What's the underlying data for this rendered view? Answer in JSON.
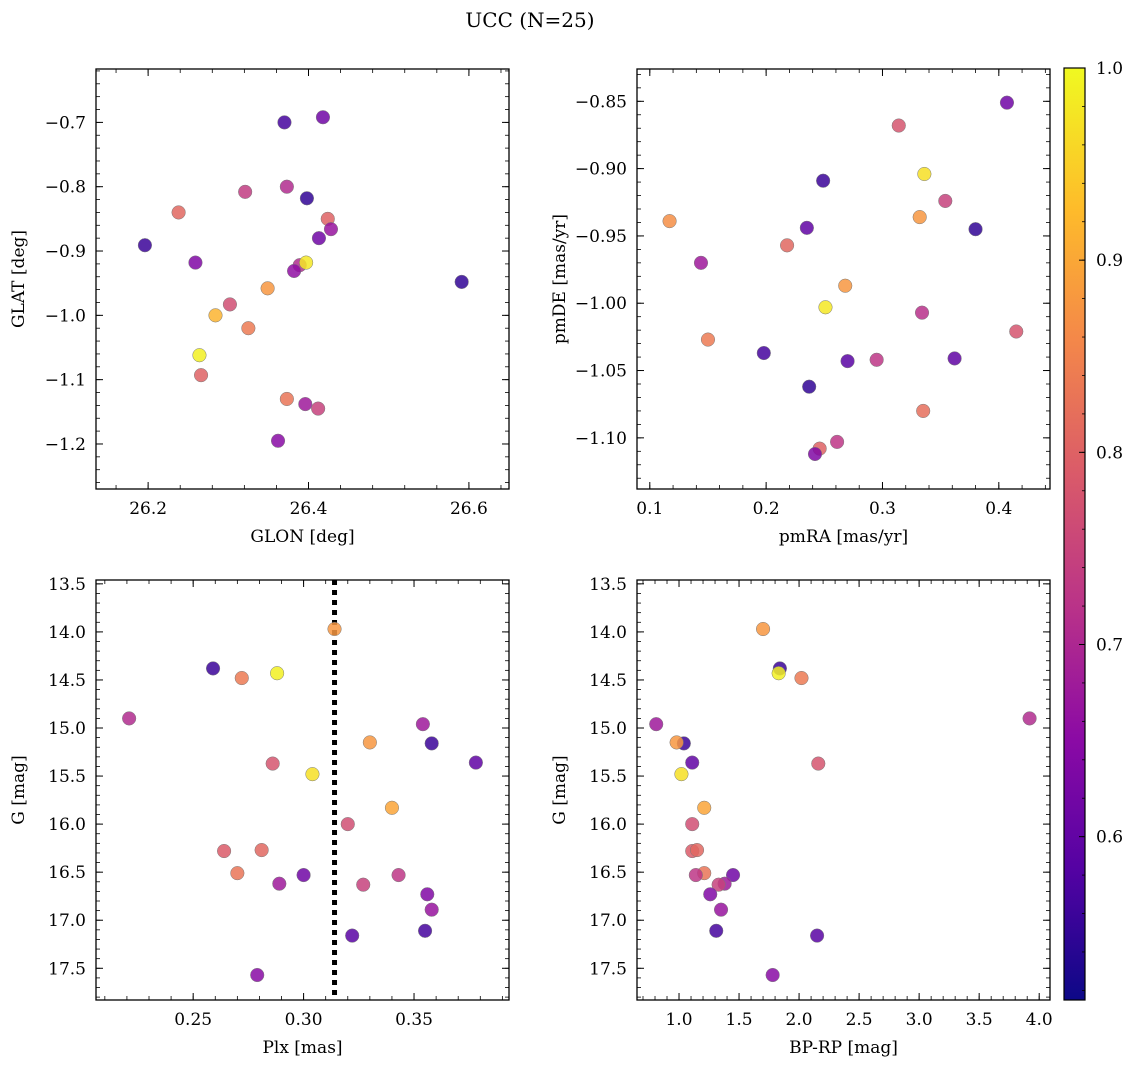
{
  "title": "UCC (N=25)",
  "colorbar": {
    "range": [
      0.515,
      1.0
    ],
    "ticks": [
      0.6,
      0.7,
      0.8,
      0.9,
      1.0
    ],
    "tick_labels": [
      "0.6",
      "0.7",
      "0.8",
      "0.9",
      "1.0"
    ],
    "colormap": "plasma"
  },
  "chart_data": [
    {
      "type": "scatter",
      "xlabel": "GLON [deg]",
      "ylabel": "GLAT [deg]",
      "xlim": [
        26.135,
        26.65
      ],
      "ylim": [
        -1.27,
        -0.617
      ],
      "y_inverted": false,
      "xticks": [
        26.2,
        26.4,
        26.6
      ],
      "xtick_labels": [
        "26.2",
        "26.4",
        "26.6"
      ],
      "yticks": [
        -1.2,
        -1.1,
        -1.0,
        -0.9,
        -0.8,
        -0.7
      ],
      "ytick_labels": [
        "−1.2",
        "−1.1",
        "−1.0",
        "−0.9",
        "−0.8",
        "−0.7"
      ],
      "points": [
        {
          "x": 26.37,
          "y": -0.7,
          "c": 0.57
        },
        {
          "x": 26.418,
          "y": -0.692,
          "c": 0.62
        },
        {
          "x": 26.321,
          "y": -0.808,
          "c": 0.74
        },
        {
          "x": 26.373,
          "y": -0.8,
          "c": 0.71
        },
        {
          "x": 26.398,
          "y": -0.818,
          "c": 0.55
        },
        {
          "x": 26.238,
          "y": -0.84,
          "c": 0.81
        },
        {
          "x": 26.424,
          "y": -0.85,
          "c": 0.8
        },
        {
          "x": 26.428,
          "y": -0.866,
          "c": 0.67
        },
        {
          "x": 26.413,
          "y": -0.88,
          "c": 0.62
        },
        {
          "x": 26.196,
          "y": -0.891,
          "c": 0.56
        },
        {
          "x": 26.259,
          "y": -0.918,
          "c": 0.64
        },
        {
          "x": 26.389,
          "y": -0.922,
          "c": 0.71
        },
        {
          "x": 26.397,
          "y": -0.918,
          "c": 0.98
        },
        {
          "x": 26.382,
          "y": -0.931,
          "c": 0.66
        },
        {
          "x": 26.349,
          "y": -0.958,
          "c": 0.88
        },
        {
          "x": 26.591,
          "y": -0.948,
          "c": 0.55
        },
        {
          "x": 26.302,
          "y": -0.983,
          "c": 0.77
        },
        {
          "x": 26.284,
          "y": -1.0,
          "c": 0.92
        },
        {
          "x": 26.325,
          "y": -1.02,
          "c": 0.84
        },
        {
          "x": 26.264,
          "y": -1.062,
          "c": 0.99
        },
        {
          "x": 26.266,
          "y": -1.093,
          "c": 0.8
        },
        {
          "x": 26.373,
          "y": -1.13,
          "c": 0.83
        },
        {
          "x": 26.396,
          "y": -1.138,
          "c": 0.68
        },
        {
          "x": 26.412,
          "y": -1.145,
          "c": 0.75
        },
        {
          "x": 26.362,
          "y": -1.195,
          "c": 0.65
        }
      ]
    },
    {
      "type": "scatter",
      "xlabel": "pmRA [mas/yr]",
      "ylabel": "pmDE [mas/yr]",
      "xlim": [
        0.089,
        0.444
      ],
      "ylim": [
        -1.138,
        -0.826
      ],
      "y_inverted": false,
      "xticks": [
        0.1,
        0.2,
        0.3,
        0.4
      ],
      "xtick_labels": [
        "0.1",
        "0.2",
        "0.3",
        "0.4"
      ],
      "yticks": [
        -1.1,
        -1.05,
        -1.0,
        -0.95,
        -0.9,
        -0.85
      ],
      "ytick_labels": [
        "−1.10",
        "−1.05",
        "−1.00",
        "−0.95",
        "−0.90",
        "−0.85"
      ],
      "points": [
        {
          "x": 0.407,
          "y": -0.851,
          "c": 0.62
        },
        {
          "x": 0.314,
          "y": -0.868,
          "c": 0.78
        },
        {
          "x": 0.336,
          "y": -0.904,
          "c": 0.97
        },
        {
          "x": 0.249,
          "y": -0.909,
          "c": 0.56
        },
        {
          "x": 0.354,
          "y": -0.924,
          "c": 0.75
        },
        {
          "x": 0.117,
          "y": -0.939,
          "c": 0.87
        },
        {
          "x": 0.332,
          "y": -0.936,
          "c": 0.88
        },
        {
          "x": 0.235,
          "y": -0.944,
          "c": 0.6
        },
        {
          "x": 0.38,
          "y": -0.945,
          "c": 0.55
        },
        {
          "x": 0.218,
          "y": -0.957,
          "c": 0.81
        },
        {
          "x": 0.144,
          "y": -0.97,
          "c": 0.68
        },
        {
          "x": 0.268,
          "y": -0.987,
          "c": 0.88
        },
        {
          "x": 0.251,
          "y": -1.003,
          "c": 0.98
        },
        {
          "x": 0.15,
          "y": -1.027,
          "c": 0.84
        },
        {
          "x": 0.334,
          "y": -1.007,
          "c": 0.72
        },
        {
          "x": 0.415,
          "y": -1.021,
          "c": 0.78
        },
        {
          "x": 0.198,
          "y": -1.037,
          "c": 0.57
        },
        {
          "x": 0.27,
          "y": -1.043,
          "c": 0.59
        },
        {
          "x": 0.295,
          "y": -1.042,
          "c": 0.73
        },
        {
          "x": 0.362,
          "y": -1.041,
          "c": 0.6
        },
        {
          "x": 0.237,
          "y": -1.062,
          "c": 0.55
        },
        {
          "x": 0.335,
          "y": -1.08,
          "c": 0.82
        },
        {
          "x": 0.261,
          "y": -1.103,
          "c": 0.73
        },
        {
          "x": 0.246,
          "y": -1.108,
          "c": 0.8
        },
        {
          "x": 0.242,
          "y": -1.112,
          "c": 0.64
        }
      ]
    },
    {
      "type": "scatter",
      "xlabel": "Plx [mas]",
      "ylabel": "G [mag]",
      "xlim": [
        0.206,
        0.393
      ],
      "ylim": [
        17.83,
        13.46
      ],
      "y_inverted": true,
      "xticks": [
        0.25,
        0.3,
        0.35
      ],
      "xtick_labels": [
        "0.25",
        "0.30",
        "0.35"
      ],
      "yticks": [
        13.5,
        14.0,
        14.5,
        15.0,
        15.5,
        16.0,
        16.5,
        17.0,
        17.5
      ],
      "ytick_labels": [
        "13.5",
        "14.0",
        "14.5",
        "15.0",
        "15.5",
        "16.0",
        "16.5",
        "17.0",
        "17.5"
      ],
      "vline": {
        "x": 0.314,
        "style": "dotted"
      },
      "points": [
        {
          "x": 0.314,
          "y": 13.97,
          "c": 0.88
        },
        {
          "x": 0.259,
          "y": 14.38,
          "c": 0.56
        },
        {
          "x": 0.288,
          "y": 14.43,
          "c": 0.99
        },
        {
          "x": 0.272,
          "y": 14.48,
          "c": 0.84
        },
        {
          "x": 0.221,
          "y": 14.9,
          "c": 0.71
        },
        {
          "x": 0.354,
          "y": 14.96,
          "c": 0.68
        },
        {
          "x": 0.358,
          "y": 15.16,
          "c": 0.56
        },
        {
          "x": 0.33,
          "y": 15.15,
          "c": 0.88
        },
        {
          "x": 0.286,
          "y": 15.37,
          "c": 0.78
        },
        {
          "x": 0.378,
          "y": 15.36,
          "c": 0.6
        },
        {
          "x": 0.304,
          "y": 15.48,
          "c": 0.97
        },
        {
          "x": 0.34,
          "y": 15.83,
          "c": 0.9
        },
        {
          "x": 0.32,
          "y": 16.0,
          "c": 0.77
        },
        {
          "x": 0.264,
          "y": 16.28,
          "c": 0.79
        },
        {
          "x": 0.281,
          "y": 16.27,
          "c": 0.81
        },
        {
          "x": 0.27,
          "y": 16.51,
          "c": 0.83
        },
        {
          "x": 0.3,
          "y": 16.53,
          "c": 0.62
        },
        {
          "x": 0.343,
          "y": 16.53,
          "c": 0.73
        },
        {
          "x": 0.289,
          "y": 16.62,
          "c": 0.68
        },
        {
          "x": 0.327,
          "y": 16.63,
          "c": 0.75
        },
        {
          "x": 0.356,
          "y": 16.73,
          "c": 0.64
        },
        {
          "x": 0.358,
          "y": 16.89,
          "c": 0.67
        },
        {
          "x": 0.322,
          "y": 17.16,
          "c": 0.59
        },
        {
          "x": 0.355,
          "y": 17.11,
          "c": 0.57
        },
        {
          "x": 0.279,
          "y": 17.57,
          "c": 0.65
        }
      ]
    },
    {
      "type": "scatter",
      "xlabel": "BP-RP [mag]",
      "ylabel": "G [mag]",
      "xlim": [
        0.65,
        4.09
      ],
      "ylim": [
        17.83,
        13.46
      ],
      "y_inverted": true,
      "xticks": [
        1.0,
        1.5,
        2.0,
        2.5,
        3.0,
        3.5,
        4.0
      ],
      "xtick_labels": [
        "1.0",
        "1.5",
        "2.0",
        "2.5",
        "3.0",
        "3.5",
        "4.0"
      ],
      "yticks": [
        13.5,
        14.0,
        14.5,
        15.0,
        15.5,
        16.0,
        16.5,
        17.0,
        17.5
      ],
      "ytick_labels": [
        "13.5",
        "14.0",
        "14.5",
        "15.0",
        "15.5",
        "16.0",
        "16.5",
        "17.0",
        "17.5"
      ],
      "points": [
        {
          "x": 1.7,
          "y": 13.97,
          "c": 0.88
        },
        {
          "x": 1.84,
          "y": 14.38,
          "c": 0.56
        },
        {
          "x": 1.83,
          "y": 14.43,
          "c": 0.99
        },
        {
          "x": 2.02,
          "y": 14.48,
          "c": 0.84
        },
        {
          "x": 3.92,
          "y": 14.9,
          "c": 0.71
        },
        {
          "x": 0.81,
          "y": 14.96,
          "c": 0.68
        },
        {
          "x": 1.04,
          "y": 15.16,
          "c": 0.56
        },
        {
          "x": 0.98,
          "y": 15.15,
          "c": 0.88
        },
        {
          "x": 2.16,
          "y": 15.37,
          "c": 0.78
        },
        {
          "x": 1.11,
          "y": 15.36,
          "c": 0.6
        },
        {
          "x": 1.02,
          "y": 15.48,
          "c": 0.97
        },
        {
          "x": 1.21,
          "y": 15.83,
          "c": 0.9
        },
        {
          "x": 1.11,
          "y": 16.0,
          "c": 0.77
        },
        {
          "x": 1.11,
          "y": 16.28,
          "c": 0.79
        },
        {
          "x": 1.15,
          "y": 16.27,
          "c": 0.81
        },
        {
          "x": 1.21,
          "y": 16.51,
          "c": 0.83
        },
        {
          "x": 1.45,
          "y": 16.53,
          "c": 0.62
        },
        {
          "x": 1.14,
          "y": 16.53,
          "c": 0.73
        },
        {
          "x": 1.38,
          "y": 16.62,
          "c": 0.68
        },
        {
          "x": 1.33,
          "y": 16.63,
          "c": 0.75
        },
        {
          "x": 1.26,
          "y": 16.73,
          "c": 0.64
        },
        {
          "x": 1.35,
          "y": 16.89,
          "c": 0.67
        },
        {
          "x": 2.15,
          "y": 17.16,
          "c": 0.59
        },
        {
          "x": 1.31,
          "y": 17.11,
          "c": 0.57
        },
        {
          "x": 1.78,
          "y": 17.57,
          "c": 0.65
        }
      ]
    }
  ]
}
